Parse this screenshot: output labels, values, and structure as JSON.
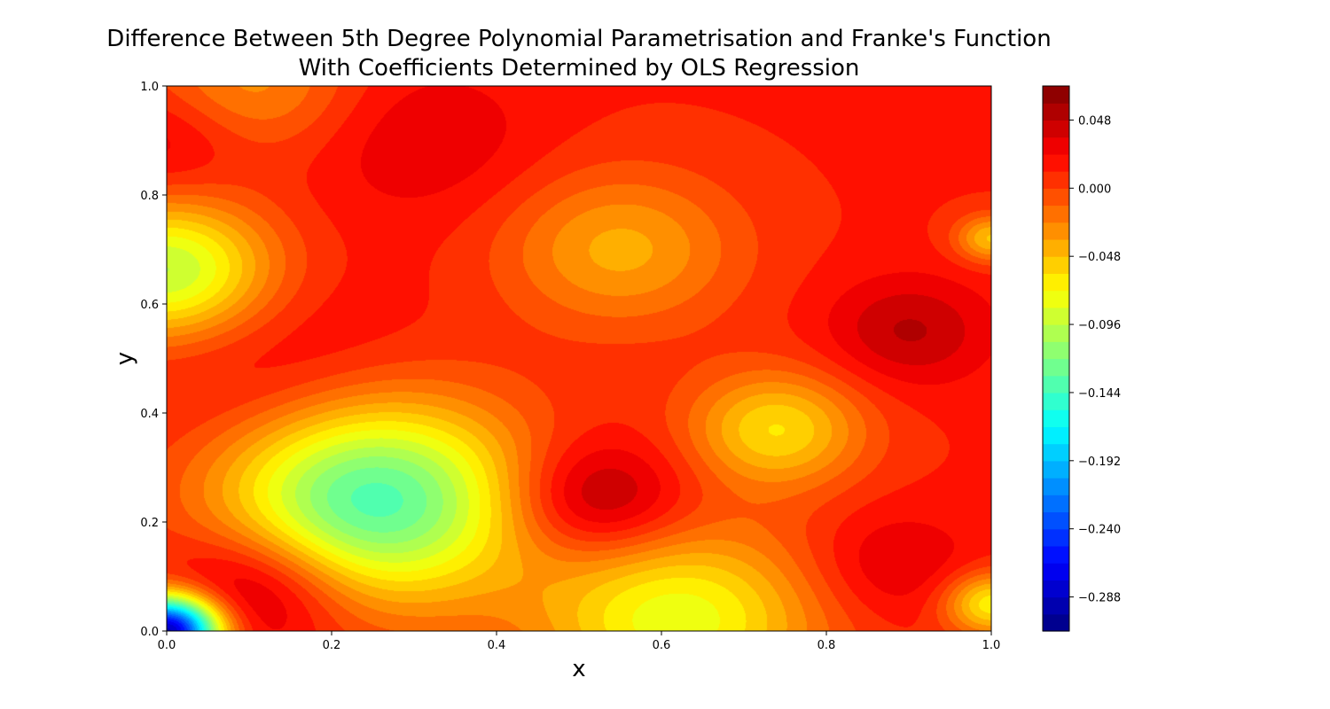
{
  "chart_data": {
    "type": "heatmap",
    "subtype": "filled-contour",
    "title": "Difference Between 5th Degree Polynomial Parametrisation and Franke's Function\nWith Coefficients Determined by OLS Regression",
    "title_lines": [
      "Difference Between 5th Degree Polynomial Parametrisation and Franke's Function",
      "With Coefficients Determined by OLS Regression"
    ],
    "xlabel": "x",
    "ylabel": "y",
    "xlim": [
      0.0,
      1.0
    ],
    "ylim": [
      0.0,
      1.0
    ],
    "x_tick_labels": [
      "0.0",
      "0.2",
      "0.4",
      "0.6",
      "0.8",
      "1.0"
    ],
    "y_tick_labels": [
      "0.0",
      "0.2",
      "0.4",
      "0.6",
      "0.8",
      "1.0"
    ],
    "colormap": "jet",
    "colorbar": {
      "range": [
        -0.312,
        0.072
      ],
      "tick_labels": [
        "0.048",
        "0.000",
        "−0.048",
        "−0.096",
        "−0.144",
        "−0.192",
        "−0.240",
        "−0.288"
      ],
      "tick_values": [
        0.048,
        0.0,
        -0.048,
        -0.096,
        -0.144,
        -0.192,
        -0.24,
        -0.288
      ]
    },
    "field_features": [
      {
        "kind": "min",
        "x": 0.0,
        "y": 0.0,
        "value": -0.3
      },
      {
        "kind": "min",
        "x": 0.25,
        "y": 0.24,
        "value": -0.14
      },
      {
        "kind": "min",
        "x": 0.0,
        "y": 0.66,
        "value": -0.1
      },
      {
        "kind": "min",
        "x": 1.0,
        "y": 0.05,
        "value": -0.07
      },
      {
        "kind": "min",
        "x": 0.62,
        "y": 0.02,
        "value": -0.08
      },
      {
        "kind": "min",
        "x": 1.0,
        "y": 0.72,
        "value": -0.05
      },
      {
        "kind": "min",
        "x": 0.74,
        "y": 0.37,
        "value": -0.06
      },
      {
        "kind": "min",
        "x": 0.55,
        "y": 0.7,
        "value": -0.04
      },
      {
        "kind": "min",
        "x": 0.1,
        "y": 1.0,
        "value": -0.03
      },
      {
        "kind": "max",
        "x": 0.11,
        "y": 0.08,
        "value": 0.07
      },
      {
        "kind": "max",
        "x": 0.52,
        "y": 0.24,
        "value": 0.07
      },
      {
        "kind": "max",
        "x": 0.9,
        "y": 0.55,
        "value": 0.05
      },
      {
        "kind": "max",
        "x": 0.88,
        "y": 0.12,
        "value": 0.04
      },
      {
        "kind": "max",
        "x": 0.0,
        "y": 0.9,
        "value": 0.04
      },
      {
        "kind": "max",
        "x": 0.31,
        "y": 0.9,
        "value": 0.035
      },
      {
        "kind": "max",
        "x": 0.13,
        "y": 0.48,
        "value": 0.035
      }
    ],
    "baseline_value": 0.013
  }
}
